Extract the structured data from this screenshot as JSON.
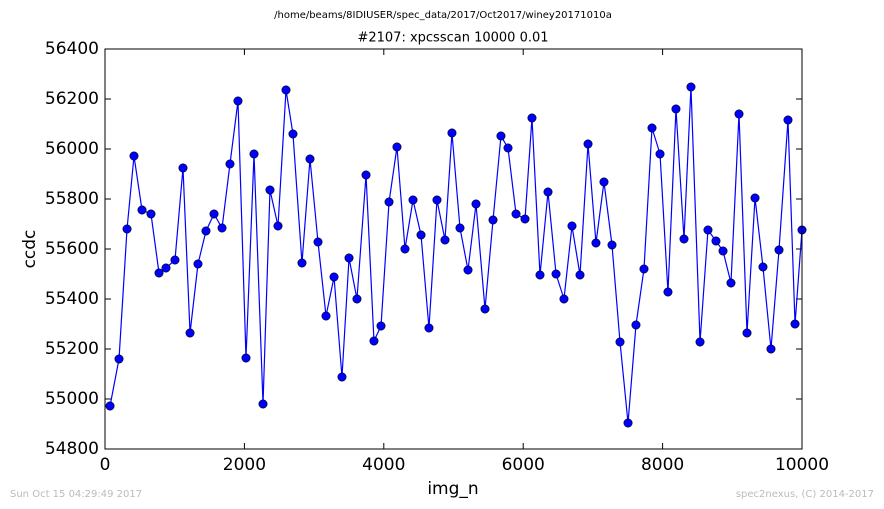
{
  "chart_data": {
    "type": "line",
    "title": "/home/beams/8IDIUSER/spec_data/2017/Oct2017/winey20171010a",
    "subtitle": "#2107: xpcsscan 10000 0.01",
    "x_label": "img_n",
    "y_label": "ccdc",
    "footer_left": "Sun Oct 15 04:29:49 2017",
    "footer_right": "spec2nexus, (C) 2014-2017",
    "x": [
      72,
      201,
      316,
      416,
      531,
      660,
      775,
      875,
      1004,
      1119,
      1220,
      1334,
      1449,
      1564,
      1679,
      1793,
      1908,
      2023,
      2138,
      2267,
      2367,
      2482,
      2597,
      2697,
      2826,
      2941,
      3056,
      3171,
      3286,
      3400,
      3501,
      3615,
      3745,
      3859,
      3960,
      4075,
      4189,
      4304,
      4419,
      4534,
      4648,
      4763,
      4878,
      4978,
      5093,
      5208,
      5323,
      5452,
      5567,
      5681,
      5782,
      5897,
      6026,
      6126,
      6241,
      6356,
      6471,
      6585,
      6700,
      6815,
      6930,
      7044,
      7159,
      7274,
      7389,
      7504,
      7618,
      7733,
      7848,
      7963,
      8077,
      8192,
      8307,
      8407,
      8537,
      8651,
      8766,
      8867,
      8981,
      9096,
      9211,
      9326,
      9440,
      9555,
      9670,
      9799,
      9900,
      10000
    ],
    "series": [
      {
        "color": "#0000ff",
        "values": [
          54972,
          55160,
          55680,
          55972,
          55756,
          55740,
          55504,
          55524,
          55556,
          55924,
          55264,
          55540,
          55672,
          55740,
          55684,
          55940,
          56192,
          55164,
          55980,
          54980,
          55836,
          55692,
          56236,
          56060,
          55544,
          55960,
          55628,
          55332,
          55488,
          55088,
          55564,
          55400,
          55896,
          55232,
          55292,
          55788,
          56008,
          55600,
          55796,
          55656,
          55284,
          55796,
          55636,
          56064,
          55684,
          55516,
          55780,
          55360,
          55716,
          56052,
          56004,
          55740,
          55720,
          56124,
          55496,
          55828,
          55500,
          55400,
          55692,
          55496,
          56020,
          55624,
          55868,
          55616,
          55228,
          54904,
          55296,
          55520,
          56084,
          55980,
          55428,
          56160,
          55640,
          56248,
          55228,
          55676,
          55632,
          55592,
          55464,
          56140,
          55264,
          55804,
          55528,
          55200,
          55596,
          56116,
          55300,
          55676
        ]
      }
    ],
    "xlim": [
      0,
      10000
    ],
    "xticks": [
      0,
      2000,
      4000,
      6000,
      8000,
      10000
    ],
    "ylim": [
      54800,
      56400
    ],
    "yticks": [
      54800,
      55000,
      55200,
      55400,
      55600,
      55800,
      56000,
      56200,
      56400
    ],
    "grid": false
  }
}
